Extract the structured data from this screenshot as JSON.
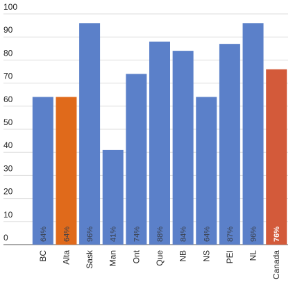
{
  "chart_data": {
    "type": "bar",
    "categories": [
      "BC",
      "Alta",
      "Sask",
      "Man",
      "Ont",
      "Que",
      "NB",
      "NS",
      "PEI",
      "NL",
      "Canada"
    ],
    "values": [
      64,
      64,
      96,
      41,
      74,
      88,
      84,
      64,
      87,
      96,
      76
    ],
    "value_labels": [
      "64%",
      "64%",
      "96%",
      "41%",
      "74%",
      "88%",
      "84%",
      "64%",
      "87%",
      "96%",
      "76%"
    ],
    "colors": [
      "#5b80c9",
      "#e06a1b",
      "#5b80c9",
      "#5b80c9",
      "#5b80c9",
      "#5b80c9",
      "#5b80c9",
      "#5b80c9",
      "#5b80c9",
      "#5b80c9",
      "#d35a3a"
    ],
    "value_label_colors": [
      "#3a3f4a",
      "#3a3f4a",
      "#3a3f4a",
      "#3a3f4a",
      "#3a3f4a",
      "#3a3f4a",
      "#3a3f4a",
      "#3a3f4a",
      "#3a3f4a",
      "#3a3f4a",
      "#ffffff"
    ],
    "ylim": [
      0,
      100
    ],
    "yticks": [
      0,
      10,
      20,
      30,
      40,
      50,
      60,
      70,
      80,
      90,
      100
    ],
    "grid": true
  }
}
